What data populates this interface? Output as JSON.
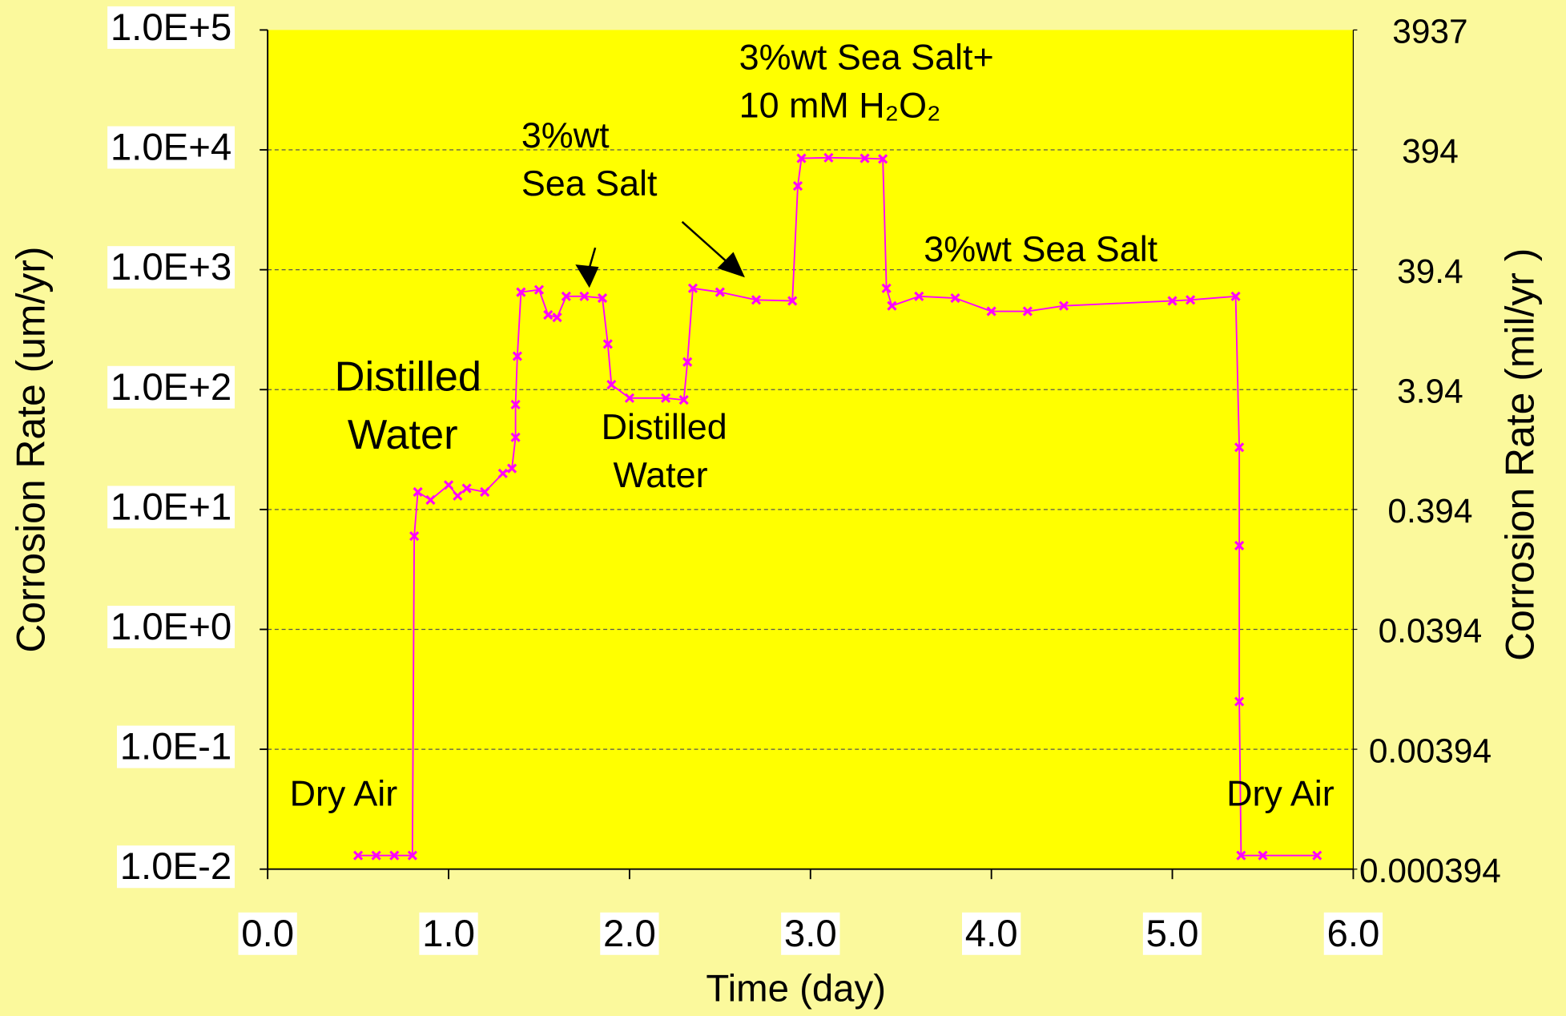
{
  "chart_data": {
    "type": "line",
    "x_label": "Time (day)",
    "y_label": "Corrosion Rate  (um/yr)",
    "y2_label": "Corrosion Rate   (mil/yr )",
    "log_y": true,
    "grid": true,
    "xlim": [
      0,
      6
    ],
    "xticks": [
      {
        "value": 0,
        "label": "0.0"
      },
      {
        "value": 1,
        "label": "1.0"
      },
      {
        "value": 2,
        "label": "2.0"
      },
      {
        "value": 3,
        "label": "3.0"
      },
      {
        "value": 4,
        "label": "4.0"
      },
      {
        "value": 5,
        "label": "5.0"
      },
      {
        "value": 6,
        "label": "6.0"
      }
    ],
    "ylim": [
      0.01,
      100000
    ],
    "yticks": [
      {
        "value": 0.01,
        "label": "1.0E-2"
      },
      {
        "value": 0.1,
        "label": "1.0E-1"
      },
      {
        "value": 1,
        "label": "1.0E+0"
      },
      {
        "value": 10,
        "label": "1.0E+1"
      },
      {
        "value": 100,
        "label": "1.0E+2"
      },
      {
        "value": 1000,
        "label": "1.0E+3"
      },
      {
        "value": 10000,
        "label": "1.0E+4"
      },
      {
        "value": 100000,
        "label": "1.0E+5"
      }
    ],
    "y2lim": [
      0.000394,
      3937
    ],
    "y2ticks": [
      0.000394,
      0.00394,
      0.0394,
      0.394,
      3.94,
      39.4,
      394,
      3937
    ],
    "annotations": [
      "Dry Air",
      "Distilled",
      "Water",
      "3%wt",
      "Sea Salt",
      "Distilled",
      "Water",
      "3%wt Sea Salt+",
      "10 mM H₂O₂",
      "3%wt Sea Salt",
      "Dry Air"
    ],
    "series": [
      {
        "color": "#ff00ff",
        "x": [
          0.5,
          0.6,
          0.7,
          0.8,
          0.81,
          0.83,
          0.9,
          1.0,
          1.05,
          1.1,
          1.2,
          1.3,
          1.35,
          1.37,
          1.37,
          1.38,
          1.4,
          1.5,
          1.55,
          1.6,
          1.65,
          1.75,
          1.85,
          1.88,
          1.9,
          2.0,
          2.2,
          2.3,
          2.32,
          2.35,
          2.5,
          2.7,
          2.9,
          2.93,
          2.95,
          3.1,
          3.3,
          3.4,
          3.42,
          3.45,
          3.6,
          3.8,
          4.0,
          4.2,
          4.4,
          5.0,
          5.1,
          5.35,
          5.37,
          5.37,
          5.37,
          5.38,
          5.5,
          5.8
        ],
        "values": [
          0.013,
          0.013,
          0.013,
          0.013,
          6,
          14,
          12,
          16,
          13,
          15,
          14,
          20,
          22,
          40,
          75,
          190,
          650,
          680,
          420,
          400,
          600,
          600,
          580,
          240,
          110,
          85,
          85,
          82,
          170,
          700,
          650,
          560,
          550,
          5000,
          8500,
          8600,
          8500,
          8400,
          700,
          500,
          600,
          580,
          450,
          450,
          500,
          550,
          560,
          600,
          33,
          5,
          0.25,
          0.013,
          0.013,
          0.013
        ]
      }
    ]
  }
}
